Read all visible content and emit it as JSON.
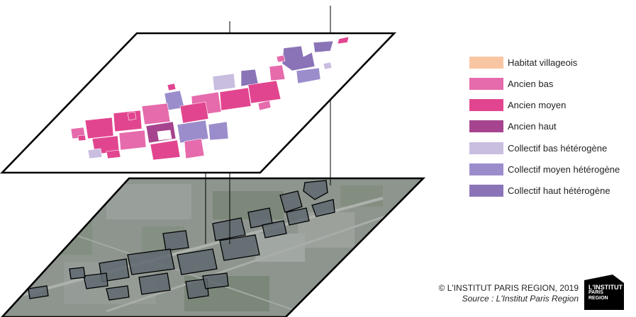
{
  "legend": {
    "items": [
      {
        "label": "Habitat villageois",
        "color": "#f9c6a3"
      },
      {
        "label": "Ancien bas",
        "color": "#e66bac"
      },
      {
        "label": "Ancien moyen",
        "color": "#e2458f"
      },
      {
        "label": "Ancien haut",
        "color": "#a6448f"
      },
      {
        "label": "Collectif bas hétérogène",
        "color": "#c9bde0"
      },
      {
        "label": "Collectif moyen hétérogène",
        "color": "#9b8dcc"
      },
      {
        "label": "Collectif haut hétérogène",
        "color": "#8a74b7"
      }
    ]
  },
  "credit": {
    "copyright": "© L'INSTITUT PARIS REGION, 2019",
    "source": "Source : L'Institut Paris Region"
  },
  "logo": {
    "line1": "L'INSTITUT",
    "line2": "PARIS",
    "line3": "REGION"
  },
  "colors": {
    "outline": "#000000",
    "aerial_base": "#8d958e",
    "logo_bg": "#000000"
  }
}
